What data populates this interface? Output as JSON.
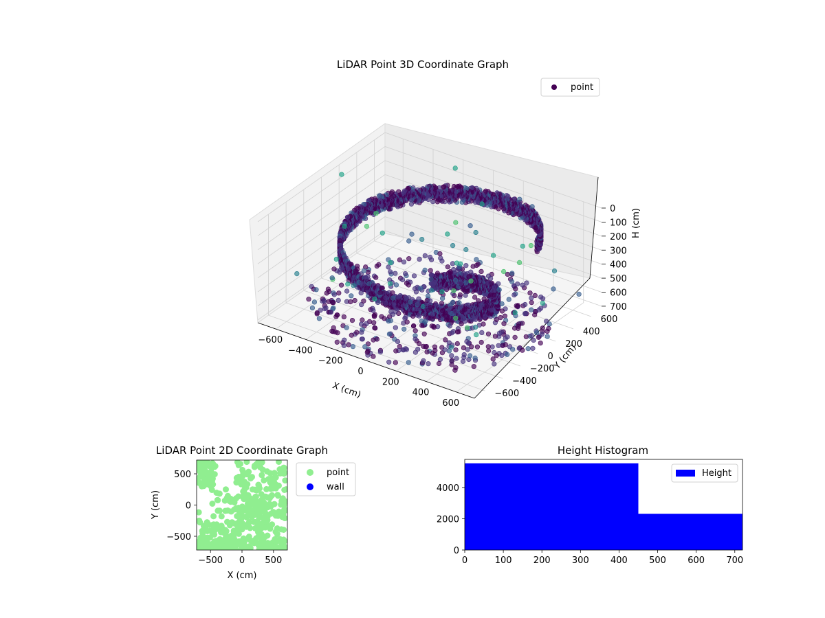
{
  "chart_data": [
    {
      "type": "scatter",
      "title": "LiDAR Point 3D Coordinate Graph",
      "xlabel": "X (cm)",
      "ylabel": "Y (cm)",
      "zlabel": "H (cm)",
      "x_ticks": [
        "−600",
        "−400",
        "−200",
        "0",
        "200",
        "400",
        "600"
      ],
      "y_ticks": [
        "−600",
        "−400",
        "−200",
        "0",
        "200",
        "400",
        "600"
      ],
      "z_ticks": [
        "0",
        "100",
        "200",
        "300",
        "400",
        "500",
        "600",
        "700"
      ],
      "xlim": [
        -720,
        720
      ],
      "ylim": [
        -720,
        720
      ],
      "zlim": [
        0,
        720
      ],
      "z_inverted": true,
      "grid": true,
      "colormap": "viridis",
      "legend": {
        "position": "top-right",
        "entries": [
          {
            "label": "point",
            "color": "#440154"
          }
        ]
      },
      "series": [
        {
          "name": "point",
          "shape": "helix spiral wall with flat disc at bottom and scattered outliers"
        }
      ]
    },
    {
      "type": "scatter",
      "title": "LiDAR Point 2D Coordinate Graph",
      "xlabel": "X (cm)",
      "ylabel": "Y (cm)",
      "x_ticks": [
        "−500",
        "0",
        "500"
      ],
      "y_ticks": [
        "−500",
        "0",
        "500"
      ],
      "xlim": [
        -720,
        720
      ],
      "ylim": [
        -720,
        720
      ],
      "grid": false,
      "legend": {
        "position": "outside-right",
        "entries": [
          {
            "label": "point",
            "color": "#90ee90"
          },
          {
            "label": "wall",
            "color": "#0000ff"
          }
        ]
      }
    },
    {
      "type": "bar",
      "title": "Height Histogram",
      "xlabel": "",
      "ylabel": "",
      "x_ticks": [
        "0",
        "100",
        "200",
        "300",
        "400",
        "500",
        "600",
        "700"
      ],
      "y_ticks": [
        "0",
        "2000",
        "4000"
      ],
      "xlim": [
        0,
        720
      ],
      "ylim": [
        0,
        5800
      ],
      "bins": [
        {
          "from": 0,
          "to": 450,
          "count": 5550
        },
        {
          "from": 450,
          "to": 720,
          "count": 2320
        }
      ],
      "color": "#0000ff",
      "legend": {
        "position": "top-right",
        "entries": [
          {
            "label": "Height",
            "color": "#0000ff"
          }
        ]
      }
    }
  ]
}
